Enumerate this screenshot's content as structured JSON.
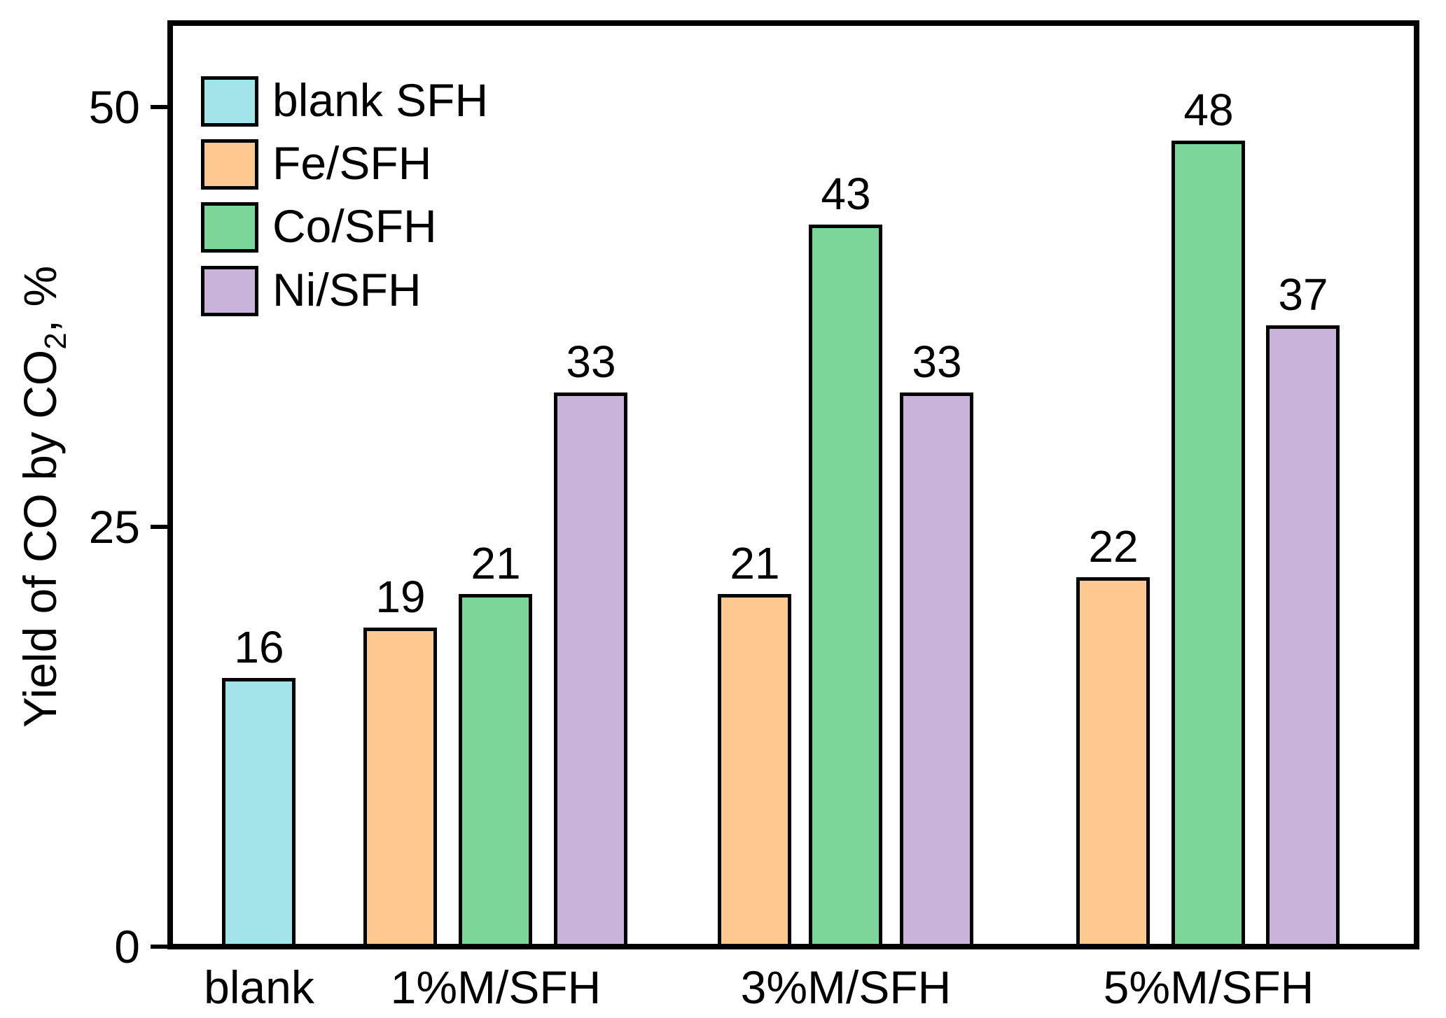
{
  "chart_data": {
    "type": "bar",
    "title": "",
    "xlabel": "",
    "ylabel": "Yield of CO by CO₂, %",
    "ylim": [
      0,
      55
    ],
    "yticks": [
      0,
      25,
      50
    ],
    "grid": false,
    "legend_position": "upper-left-inside",
    "bar_labels_shown": true,
    "categories": [
      "blank",
      "1%M/SFH",
      "3%M/SFH",
      "5%M/SFH"
    ],
    "series": [
      {
        "name": "blank SFH",
        "color": "#a2e4ea",
        "values": [
          16,
          null,
          null,
          null
        ]
      },
      {
        "name": "Fe/SFH",
        "color": "#fec991",
        "values": [
          null,
          19,
          21,
          22
        ]
      },
      {
        "name": "Co/SFH",
        "color": "#7cd69a",
        "values": [
          null,
          21,
          43,
          48
        ]
      },
      {
        "name": "Ni/SFH",
        "color": "#c9b3da",
        "values": [
          null,
          33,
          33,
          37
        ]
      }
    ]
  },
  "axes": {
    "y_label_main": "Yield of CO by CO",
    "y_label_sub": "2",
    "y_label_suffix": ", %",
    "y_tick_labels": [
      "0",
      "25",
      "50"
    ],
    "x_tick_labels": [
      "blank",
      "1%M/SFH",
      "3%M/SFH",
      "5%M/SFH"
    ]
  },
  "legend": {
    "items": [
      {
        "label": "blank SFH",
        "color": "#a2e4ea"
      },
      {
        "label": "Fe/SFH",
        "color": "#fec991"
      },
      {
        "label": "Co/SFH",
        "color": "#7cd69a"
      },
      {
        "label": "Ni/SFH",
        "color": "#c9b3da"
      }
    ]
  },
  "colors": {
    "frame": "#000000",
    "text": "#000000",
    "background": "#ffffff"
  }
}
